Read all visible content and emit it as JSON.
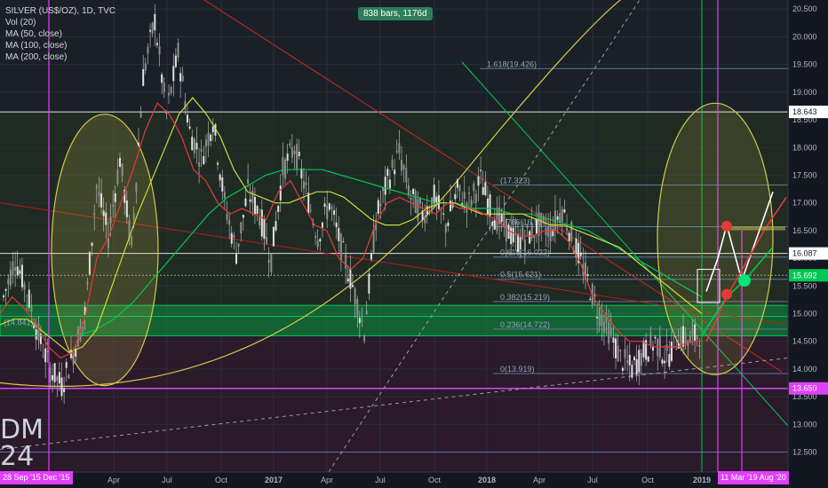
{
  "legend": {
    "symbol": "SILVER (US$/OZ), 1D, TVC",
    "volume": "Vol (20)",
    "ma50": "MA (50, close)",
    "ma100": "MA (100, close)",
    "ma200": "MA (200, close)"
  },
  "measure_label": "838 bars, 1176d",
  "watermark": {
    "line1": "DM",
    "line2": "24"
  },
  "date_range_left": "28 Sep '15 Dec '15",
  "date_range_right": "11 Mar '19 Aug '20",
  "colors": {
    "background": "#131722",
    "green_zone": "#00c853",
    "magenta": "#e040fb",
    "ma50": "#e53935",
    "ma100": "#cddc39",
    "ma200": "#00c853",
    "candle": "#c9c9c9",
    "ellipse": "#d4c94a",
    "fib": "#5c7a99"
  },
  "chart_data": {
    "type": "candlestick",
    "title": "SILVER (US$/OZ), 1D, TVC",
    "ylim": [
      12.3,
      20.6
    ],
    "y_ticks": [
      "12.500",
      "13.000",
      "13.500",
      "14.000",
      "14.500",
      "15.000",
      "15.500",
      "16.000",
      "16.500",
      "17.000",
      "17.500",
      "18.000",
      "18.500",
      "19.000",
      "19.500",
      "20.000",
      "20.500"
    ],
    "x_ticks": [
      "Apr",
      "Jul",
      "Oct",
      "2017",
      "Apr",
      "Jul",
      "Oct",
      "2018",
      "Apr",
      "Jul",
      "Oct",
      "2019"
    ],
    "price_badges": [
      {
        "value": "18.643",
        "kind": "white"
      },
      {
        "value": "16.087",
        "kind": "white"
      },
      {
        "value": "15.692",
        "kind": "green"
      },
      {
        "value": "13.650",
        "kind": "magenta"
      }
    ],
    "fibonacci": [
      {
        "label": "1.618(19.426)",
        "value": 19.426
      },
      {
        "label": "(17.323)",
        "value": 17.323
      },
      {
        "label": "0.786(16.57)",
        "value": 16.57
      },
      {
        "label": "0.618(16.022)",
        "value": 16.022
      },
      {
        "label": "0.5(15.621)",
        "value": 15.621
      },
      {
        "label": "0.382(15.219)",
        "value": 15.219
      },
      {
        "label": "0.236(14.722)",
        "value": 14.722
      },
      {
        "label": "0(13.919)",
        "value": 13.919
      }
    ],
    "left_price_label": "(14.841)",
    "horizontal_levels": [
      18.643,
      16.087,
      15.692,
      13.65
    ],
    "green_zone": [
      14.6,
      15.15
    ],
    "price_path": [
      15.3,
      16.0,
      15.4,
      14.6,
      14.0,
      13.7,
      14.3,
      15.0,
      17.3,
      16.4,
      17.8,
      16.2,
      19.3,
      20.3,
      18.6,
      19.7,
      18.3,
      17.8,
      18.5,
      17.0,
      16.1,
      17.2,
      16.8,
      16.0,
      17.6,
      18.0,
      17.2,
      16.4,
      17.0,
      16.2,
      15.5,
      14.7,
      16.7,
      17.4,
      17.9,
      17.1,
      16.8,
      17.1,
      16.6,
      17.2,
      17.0,
      17.4,
      16.8,
      16.6,
      16.3,
      16.4,
      16.6,
      16.5,
      16.9,
      16.3,
      15.7,
      15.1,
      14.7,
      14.2,
      14.0,
      14.3,
      14.5,
      14.2,
      14.6,
      14.5,
      14.7
    ],
    "ma50_path": [
      15.0,
      15.3,
      15.1,
      14.8,
      14.4,
      14.2,
      14.3,
      14.9,
      16.0,
      16.4,
      17.0,
      17.6,
      18.3,
      18.8,
      18.6,
      18.2,
      17.6,
      17.4,
      17.0,
      16.8,
      16.9,
      16.8,
      16.7,
      17.2,
      17.4,
      17.0,
      16.6,
      16.5,
      16.0,
      15.8,
      16.0,
      16.6,
      17.0,
      17.1,
      17.0,
      16.9,
      16.8,
      17.0,
      16.9,
      16.9,
      16.8,
      16.7,
      16.5,
      16.4,
      16.4,
      16.5,
      16.5,
      16.3,
      15.9,
      15.3,
      15.0,
      14.7,
      14.5,
      14.5,
      14.4,
      14.4,
      14.4,
      14.5,
      14.5
    ],
    "ma100_path": [
      14.8,
      14.9,
      14.9,
      14.7,
      14.5,
      14.3,
      14.4,
      14.7,
      15.4,
      16.1,
      16.8,
      17.4,
      18.0,
      18.6,
      18.9,
      18.6,
      18.2,
      17.6,
      17.2,
      17.1,
      17.0,
      17.0,
      17.1,
      17.2,
      17.2,
      17.1,
      16.9,
      16.7,
      16.6,
      16.6,
      16.7,
      16.9,
      17.0,
      17.0,
      16.9,
      16.8,
      16.8,
      16.8,
      16.8,
      16.7,
      16.6,
      16.6,
      16.5,
      16.4,
      16.3,
      16.2,
      16.0,
      15.8,
      15.6,
      15.4,
      15.2,
      15.0
    ],
    "ma200_path": [
      14.6,
      14.6,
      14.6,
      14.6,
      14.6,
      14.7,
      14.9,
      15.2,
      15.6,
      16.0,
      16.4,
      16.8,
      17.1,
      17.3,
      17.5,
      17.6,
      17.6,
      17.6,
      17.5,
      17.4,
      17.3,
      17.2,
      17.1,
      17.0,
      17.0,
      16.9,
      16.9,
      16.8,
      16.8,
      16.7,
      16.6,
      16.5,
      16.3,
      16.1,
      15.9,
      15.7,
      15.5,
      15.3
    ]
  }
}
